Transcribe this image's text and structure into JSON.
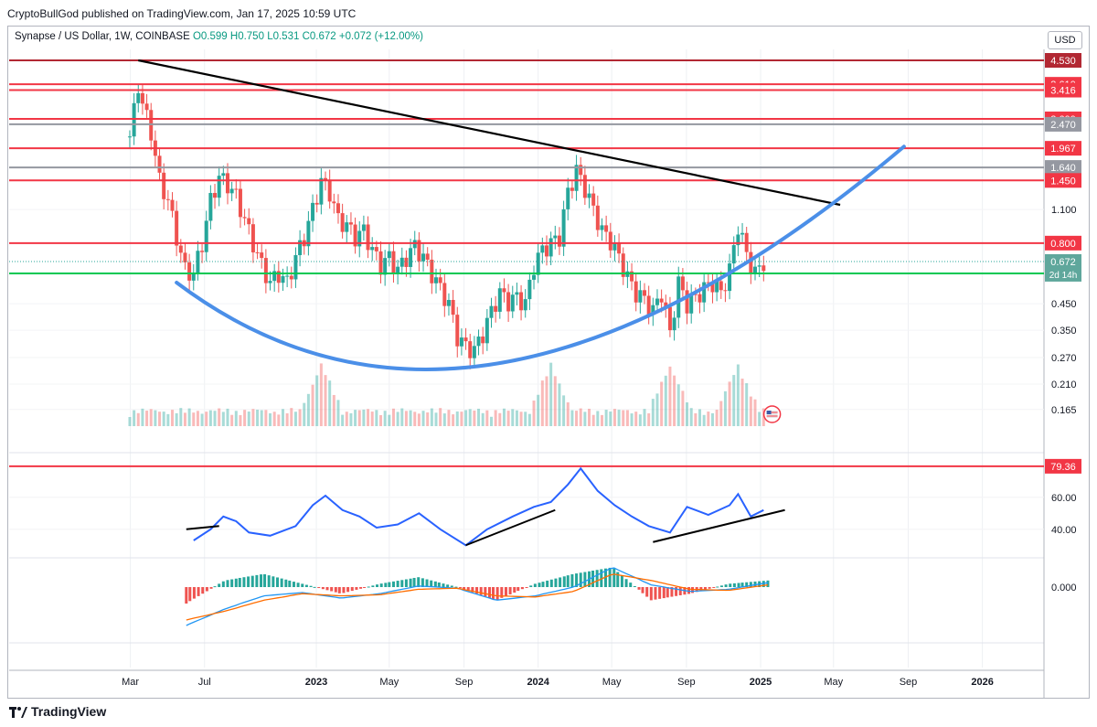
{
  "header": {
    "published_text": "CryptoBullGod published on TradingView.com, Jan 17, 2025 10:59 UTC"
  },
  "legend": {
    "symbol": "Synapse / US Dollar, 1W, COINBASE",
    "open": "O0.599",
    "high": "H0.750",
    "low": "L0.531",
    "close": "C0.672",
    "change": "+0.072 (+12.00%)"
  },
  "currency_button": "USD",
  "footer": {
    "brand": "TradingView"
  },
  "colors": {
    "up": "#26a69a",
    "down": "#ef5350",
    "resistance": "#f23645",
    "darkred": "#b22833",
    "grey": "#9598a1",
    "support": "#00c853",
    "curve": "#4b8fe8",
    "rsi": "#2962ff",
    "macd": "#2196f3",
    "signal": "#ff6d00"
  },
  "chart_data": [
    {
      "type": "candlestick",
      "title": "Synapse / US Dollar, 1W, COINBASE",
      "scale": "log",
      "ylim": [
        0.14,
        4.8
      ],
      "grid": true,
      "x_tick_labels": [
        "Mar",
        "Jul",
        "2023",
        "May",
        "Sep",
        "2024",
        "May",
        "Sep",
        "2025",
        "May",
        "Sep",
        "2026"
      ],
      "y_tick_labels": [
        "1.100",
        "0.450",
        "0.350",
        "0.270",
        "0.210",
        "0.165"
      ],
      "last_price_label": "0.672",
      "countdown_label": "2d 14h",
      "close_series": [
        {
          "date": "2022-02-28",
          "close": 2.2
        },
        {
          "date": "2022-03-07",
          "close": 2.8
        },
        {
          "date": "2022-03-14",
          "close": 3.6
        },
        {
          "date": "2022-03-21",
          "close": 3.0
        },
        {
          "date": "2022-04-04",
          "close": 2.3
        },
        {
          "date": "2022-04-18",
          "close": 1.45
        },
        {
          "date": "2022-05-02",
          "close": 1.2
        },
        {
          "date": "2022-05-16",
          "close": 0.85
        },
        {
          "date": "2022-05-30",
          "close": 0.62
        },
        {
          "date": "2022-06-13",
          "close": 0.6
        },
        {
          "date": "2022-06-27",
          "close": 0.8
        },
        {
          "date": "2022-07-11",
          "close": 1.2
        },
        {
          "date": "2022-07-25",
          "close": 1.5
        },
        {
          "date": "2022-08-08",
          "close": 1.4
        },
        {
          "date": "2022-08-22",
          "close": 1.25
        },
        {
          "date": "2022-09-05",
          "close": 1.0
        },
        {
          "date": "2022-09-19",
          "close": 0.8
        },
        {
          "date": "2022-10-03",
          "close": 0.65
        },
        {
          "date": "2022-10-17",
          "close": 0.55
        },
        {
          "date": "2022-10-31",
          "close": 0.6
        },
        {
          "date": "2022-11-14",
          "close": 0.55
        },
        {
          "date": "2022-11-28",
          "close": 0.7
        },
        {
          "date": "2022-12-12",
          "close": 0.85
        },
        {
          "date": "2022-12-26",
          "close": 1.1
        },
        {
          "date": "2023-01-09",
          "close": 1.45
        },
        {
          "date": "2023-01-23",
          "close": 1.3
        },
        {
          "date": "2023-02-06",
          "close": 1.0
        },
        {
          "date": "2023-02-20",
          "close": 0.95
        },
        {
          "date": "2023-03-06",
          "close": 0.85
        },
        {
          "date": "2023-03-20",
          "close": 0.9
        },
        {
          "date": "2023-04-03",
          "close": 0.75
        },
        {
          "date": "2023-04-17",
          "close": 0.65
        },
        {
          "date": "2023-05-01",
          "close": 0.7
        },
        {
          "date": "2023-05-15",
          "close": 0.62
        },
        {
          "date": "2023-05-29",
          "close": 0.7
        },
        {
          "date": "2023-06-12",
          "close": 0.78
        },
        {
          "date": "2023-06-26",
          "close": 0.7
        },
        {
          "date": "2023-07-10",
          "close": 0.6
        },
        {
          "date": "2023-07-24",
          "close": 0.52
        },
        {
          "date": "2023-08-07",
          "close": 0.45
        },
        {
          "date": "2023-08-21",
          "close": 0.33
        },
        {
          "date": "2023-09-04",
          "close": 0.3
        },
        {
          "date": "2023-09-18",
          "close": 0.29
        },
        {
          "date": "2023-10-02",
          "close": 0.34
        },
        {
          "date": "2023-10-16",
          "close": 0.42
        },
        {
          "date": "2023-10-30",
          "close": 0.5
        },
        {
          "date": "2023-11-13",
          "close": 0.46
        },
        {
          "date": "2023-11-27",
          "close": 0.48
        },
        {
          "date": "2023-12-11",
          "close": 0.45
        },
        {
          "date": "2023-12-25",
          "close": 0.65
        },
        {
          "date": "2024-01-08",
          "close": 0.75
        },
        {
          "date": "2024-01-22",
          "close": 0.8
        },
        {
          "date": "2024-02-05",
          "close": 0.85
        },
        {
          "date": "2024-02-19",
          "close": 1.3
        },
        {
          "date": "2024-03-04",
          "close": 1.6
        },
        {
          "date": "2024-03-18",
          "close": 1.35
        },
        {
          "date": "2024-04-01",
          "close": 1.1
        },
        {
          "date": "2024-04-15",
          "close": 0.9
        },
        {
          "date": "2024-04-29",
          "close": 0.82
        },
        {
          "date": "2024-05-13",
          "close": 0.7
        },
        {
          "date": "2024-05-27",
          "close": 0.58
        },
        {
          "date": "2024-06-10",
          "close": 0.5
        },
        {
          "date": "2024-06-24",
          "close": 0.47
        },
        {
          "date": "2024-07-08",
          "close": 0.42
        },
        {
          "date": "2024-07-22",
          "close": 0.5
        },
        {
          "date": "2024-08-05",
          "close": 0.34
        },
        {
          "date": "2024-08-19",
          "close": 0.55
        },
        {
          "date": "2024-09-02",
          "close": 0.45
        },
        {
          "date": "2024-09-16",
          "close": 0.48
        },
        {
          "date": "2024-09-30",
          "close": 0.52
        },
        {
          "date": "2024-10-14",
          "close": 0.55
        },
        {
          "date": "2024-10-28",
          "close": 0.5
        },
        {
          "date": "2024-11-11",
          "close": 0.62
        },
        {
          "date": "2024-11-25",
          "close": 0.95
        },
        {
          "date": "2024-12-09",
          "close": 0.72
        },
        {
          "date": "2024-12-23",
          "close": 0.6
        },
        {
          "date": "2025-01-06",
          "close": 0.672
        }
      ],
      "horizontal_levels": [
        {
          "value": 4.53,
          "label": "4.530",
          "color": "darkred"
        },
        {
          "value": 3.61,
          "label": "3.610",
          "color": "resistance"
        },
        {
          "value": 3.416,
          "label": "3.416",
          "color": "resistance"
        },
        {
          "value": 2.6,
          "label": "2.600",
          "color": "resistance"
        },
        {
          "value": 2.47,
          "label": "2.470",
          "color": "grey"
        },
        {
          "value": 1.967,
          "label": "1.967",
          "color": "resistance"
        },
        {
          "value": 1.64,
          "label": "1.640",
          "color": "grey"
        },
        {
          "value": 1.45,
          "label": "1.450",
          "color": "resistance"
        },
        {
          "value": 0.8,
          "label": "0.800",
          "color": "resistance"
        },
        {
          "value": 0.6,
          "label": "0.600",
          "color": "support"
        }
      ],
      "trendline": {
        "from": {
          "date": "2022-03-14",
          "value": 4.53
        },
        "to": {
          "date": "2025-05-12",
          "value": 1.15
        }
      },
      "rounding_bottom": {
        "start": {
          "date": "2022-05-16",
          "value": 0.55
        },
        "bottom": {
          "date": "2023-11-13",
          "value": 0.26
        },
        "end": {
          "date": "2025-08-25",
          "value": 2.0
        }
      },
      "volume": {
        "shown": true,
        "peak_weeks": [
          "2023-01-09",
          "2024-01-22",
          "2024-08-05",
          "2024-11-25"
        ]
      }
    },
    {
      "type": "line",
      "name": "RSI",
      "ylim": [
        25,
        85
      ],
      "y_tick_labels": [
        "60.00",
        "40.00"
      ],
      "level_label": "79.36",
      "level": 79.36,
      "series": [
        {
          "date": "2022-06-13",
          "value": 33
        },
        {
          "date": "2022-07-11",
          "value": 40
        },
        {
          "date": "2022-08-01",
          "value": 48
        },
        {
          "date": "2022-08-22",
          "value": 45
        },
        {
          "date": "2022-09-12",
          "value": 38
        },
        {
          "date": "2022-10-17",
          "value": 36
        },
        {
          "date": "2022-11-28",
          "value": 42
        },
        {
          "date": "2022-12-26",
          "value": 55
        },
        {
          "date": "2023-01-16",
          "value": 61
        },
        {
          "date": "2023-02-13",
          "value": 52
        },
        {
          "date": "2023-03-13",
          "value": 48
        },
        {
          "date": "2023-04-10",
          "value": 41
        },
        {
          "date": "2023-05-15",
          "value": 43
        },
        {
          "date": "2023-06-19",
          "value": 50
        },
        {
          "date": "2023-07-24",
          "value": 40
        },
        {
          "date": "2023-09-04",
          "value": 30
        },
        {
          "date": "2023-10-09",
          "value": 40
        },
        {
          "date": "2023-11-20",
          "value": 48
        },
        {
          "date": "2023-12-25",
          "value": 54
        },
        {
          "date": "2024-01-22",
          "value": 57
        },
        {
          "date": "2024-02-19",
          "value": 68
        },
        {
          "date": "2024-03-11",
          "value": 78
        },
        {
          "date": "2024-04-08",
          "value": 64
        },
        {
          "date": "2024-05-06",
          "value": 55
        },
        {
          "date": "2024-06-03",
          "value": 48
        },
        {
          "date": "2024-07-01",
          "value": 42
        },
        {
          "date": "2024-08-05",
          "value": 38
        },
        {
          "date": "2024-09-02",
          "value": 54
        },
        {
          "date": "2024-10-07",
          "value": 49
        },
        {
          "date": "2024-11-11",
          "value": 55
        },
        {
          "date": "2024-11-25",
          "value": 62
        },
        {
          "date": "2024-12-16",
          "value": 48
        },
        {
          "date": "2025-01-06",
          "value": 52
        }
      ]
    },
    {
      "type": "line",
      "name": "MACD",
      "y_tick_labels": [
        "0.000"
      ],
      "series": [
        {
          "name": "MACD",
          "color": "macd",
          "values": [
            -0.35,
            -0.2,
            -0.08,
            -0.05,
            -0.1,
            -0.06,
            0.01,
            -0.01,
            -0.12,
            -0.08,
            0.0,
            0.18,
            0.02,
            -0.04,
            -0.02,
            0.04
          ]
        },
        {
          "name": "Signal",
          "color": "signal",
          "values": [
            -0.3,
            -0.22,
            -0.12,
            -0.06,
            -0.08,
            -0.07,
            -0.02,
            -0.01,
            -0.08,
            -0.09,
            -0.04,
            0.12,
            0.06,
            -0.02,
            -0.03,
            0.02
          ]
        }
      ]
    }
  ]
}
